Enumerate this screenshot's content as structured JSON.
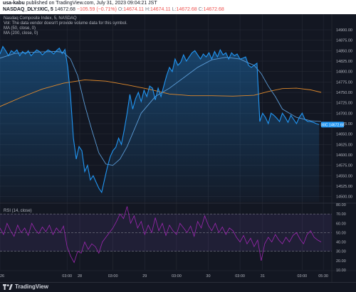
{
  "header": {
    "publisher": "usa-kabu",
    "published_text": "published on TradingView.com, July 31, 2023 09:04:21 JST",
    "symbol": "NASDAQ_DLY:IXIC, 5",
    "last": "14672.68",
    "change": "−105.59 (−0.71%)",
    "o_label": "O:",
    "o_value": "14674.11",
    "h_label": "H:",
    "h_value": "14674.11",
    "l_label": "L:",
    "l_value": "14672.68",
    "c_label": "C:",
    "c_value": "14672.68"
  },
  "legend": {
    "title": "Nasdaq Composite Index, 5, NASDAQ",
    "vol": "Vol: The data vendor doesn't provide volume data for this symbol.",
    "ma50": "MA (50, close, 0)",
    "ma200": "MA (200, close, 0)",
    "rsi": "RSI (14, close)"
  },
  "price_badge": "IXIC  14672.68",
  "footer": {
    "brand": "TradingView"
  },
  "colors": {
    "price": "#2196f3",
    "ma50": "#5b9bd5",
    "ma200": "#e08a2c",
    "rsi": "#9c27b0",
    "background": "#131722"
  },
  "chart_data": [
    {
      "type": "area",
      "title": "Nasdaq Composite Index, 5, NASDAQ",
      "ylim": [
        14487.5,
        14937.5
      ],
      "y_ticks": [
        14500,
        14525,
        14550,
        14575,
        14600,
        14625,
        14650,
        14675,
        14700,
        14725,
        14750,
        14775,
        14800,
        14825,
        14850,
        14875,
        14900
      ],
      "x_ticks": [
        "26",
        "03:00",
        "28",
        "03:00",
        "29",
        "03:00",
        "30",
        "03:00",
        "31",
        "03:00",
        "05:30"
      ],
      "grid": true,
      "last_value": 14672.68,
      "series": [
        {
          "name": "IXIC",
          "x": [
            0,
            4,
            8,
            12,
            16,
            20,
            24,
            28,
            32,
            36,
            40,
            44,
            48,
            52,
            56,
            60,
            64,
            68,
            72,
            76,
            80,
            84,
            88,
            92,
            96,
            100,
            104,
            108,
            112,
            116,
            120,
            124,
            128,
            132,
            136,
            140,
            144,
            148,
            152,
            156,
            160,
            164,
            168,
            172,
            176,
            180,
            184,
            188,
            192,
            196,
            200,
            204,
            208,
            212,
            216,
            220,
            224,
            228,
            232,
            236,
            240,
            244,
            248,
            252,
            256,
            260,
            264,
            268,
            272,
            276,
            280,
            284,
            288,
            292,
            296,
            300,
            304,
            308,
            312,
            316,
            320,
            324,
            328,
            332,
            336,
            340,
            344,
            348,
            352,
            356,
            360,
            364,
            368,
            372,
            376,
            380,
            384,
            388,
            392,
            396,
            400,
            404,
            408,
            412,
            416,
            420,
            424,
            428,
            432,
            436,
            440,
            444,
            448,
            452
          ],
          "values": [
            14842,
            14860,
            14850,
            14838,
            14850,
            14845,
            14852,
            14838,
            14848,
            14842,
            14850,
            14838,
            14845,
            14852,
            14848,
            14840,
            14846,
            14852,
            14848,
            14842,
            14850,
            14856,
            14843,
            14853,
            14810,
            14740,
            14640,
            14590,
            14620,
            14610,
            14560,
            14575,
            14540,
            14550,
            14535,
            14520,
            14510,
            14540,
            14570,
            14595,
            14610,
            14618,
            14640,
            14625,
            14660,
            14700,
            14745,
            14710,
            14735,
            14750,
            14728,
            14755,
            14740,
            14765,
            14760,
            14732,
            14760,
            14740,
            14765,
            14790,
            14810,
            14800,
            14830,
            14815,
            14822,
            14840,
            14825,
            14835,
            14845,
            14850,
            14840,
            14830,
            14842,
            14835,
            14845,
            14830,
            14848,
            14835,
            14852,
            14840,
            14845,
            14830,
            14845,
            14838,
            14842,
            14830,
            14832,
            14835,
            14815,
            14810,
            14815,
            14820,
            14680,
            14700,
            14690,
            14675,
            14700,
            14695,
            14688,
            14680,
            14700,
            14690,
            14678,
            14695,
            14685,
            14675,
            14690,
            14700,
            14685,
            14680,
            14680,
            14678,
            14675,
            14672.68
          ]
        },
        {
          "name": "MA (50, close, 0)",
          "x": [
            0,
            20,
            40,
            60,
            80,
            90,
            100,
            110,
            120,
            130,
            140,
            150,
            160,
            170,
            180,
            190,
            200,
            220,
            240,
            260,
            280,
            300,
            320,
            340,
            350,
            360,
            370,
            380,
            390,
            400,
            420,
            440,
            455
          ],
          "values": [
            14832,
            14843,
            14846,
            14847,
            14848,
            14846,
            14830,
            14790,
            14720,
            14660,
            14605,
            14578,
            14575,
            14590,
            14620,
            14660,
            14700,
            14740,
            14760,
            14785,
            14810,
            14828,
            14834,
            14830,
            14822,
            14815,
            14795,
            14765,
            14740,
            14710,
            14690,
            14682,
            14680
          ]
        },
        {
          "name": "MA (200, close, 0)",
          "x": [
            0,
            30,
            60,
            90,
            120,
            150,
            180,
            210,
            240,
            270,
            300,
            330,
            360,
            380,
            400,
            420,
            440,
            455
          ],
          "values": [
            14716,
            14738,
            14758,
            14772,
            14780,
            14777,
            14768,
            14758,
            14746,
            14742,
            14742,
            14741,
            14743,
            14752,
            14759,
            14760,
            14756,
            14750
          ]
        }
      ]
    },
    {
      "type": "line",
      "title": "RSI (14, close)",
      "ylim": [
        10,
        80
      ],
      "y_ticks": [
        10,
        20,
        30,
        40,
        50,
        60,
        70,
        80
      ],
      "bands": [
        30,
        50,
        70
      ],
      "series": [
        {
          "name": "RSI (14, close)",
          "x": [
            0,
            5,
            10,
            15,
            20,
            25,
            30,
            35,
            40,
            45,
            50,
            55,
            60,
            65,
            70,
            75,
            80,
            85,
            90,
            95,
            100,
            105,
            110,
            115,
            120,
            125,
            130,
            135,
            140,
            145,
            150,
            155,
            160,
            165,
            170,
            175,
            180,
            185,
            190,
            195,
            200,
            205,
            210,
            215,
            220,
            225,
            230,
            235,
            240,
            245,
            250,
            255,
            260,
            265,
            270,
            275,
            280,
            285,
            290,
            295,
            300,
            305,
            310,
            315,
            320,
            325,
            330,
            335,
            340,
            345,
            350,
            355,
            360,
            365,
            370,
            375,
            380,
            385,
            390,
            395,
            400,
            405,
            410,
            415,
            420,
            425,
            430,
            435,
            440,
            445,
            450,
            455
          ],
          "values": [
            55,
            48,
            60,
            52,
            46,
            58,
            50,
            55,
            47,
            60,
            53,
            49,
            56,
            51,
            58,
            48,
            55,
            50,
            57,
            35,
            25,
            18,
            30,
            28,
            40,
            32,
            38,
            35,
            28,
            40,
            45,
            50,
            55,
            62,
            70,
            65,
            78,
            60,
            68,
            55,
            62,
            48,
            58,
            50,
            66,
            52,
            60,
            47,
            58,
            52,
            48,
            60,
            55,
            50,
            57,
            46,
            62,
            55,
            68,
            58,
            52,
            60,
            50,
            56,
            48,
            55,
            52,
            45,
            40,
            47,
            38,
            44,
            35,
            42,
            20,
            38,
            45,
            40,
            48,
            42,
            38,
            45,
            40,
            47,
            50,
            43,
            38,
            48,
            52,
            45,
            42,
            40
          ]
        }
      ]
    }
  ]
}
